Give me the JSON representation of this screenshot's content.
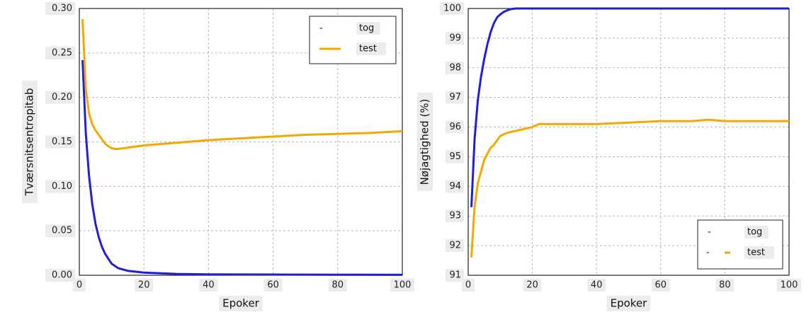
{
  "colors": {
    "train": "#1f1fd6",
    "test": "#f5a800",
    "grid": "#b8b8b8",
    "frame": "#222222"
  },
  "chart_data": [
    {
      "type": "line",
      "xlabel": "Epoker",
      "ylabel": "Tværsnitsentropitab",
      "xlim": [
        0,
        100
      ],
      "ylim": [
        0,
        0.3
      ],
      "xticks": [
        "0",
        "20",
        "40",
        "60",
        "80",
        "100"
      ],
      "yticks": [
        "0.00",
        "0.05",
        "0.10",
        "0.15",
        "0.20",
        "0.25",
        "0.30"
      ],
      "grid": true,
      "legend_position": "top-right",
      "series": [
        {
          "name": "tog",
          "legend_marker": "-",
          "x": [
            1,
            2,
            3,
            4,
            5,
            6,
            7,
            8,
            10,
            12,
            15,
            20,
            30,
            40,
            60,
            80,
            100
          ],
          "y": [
            0.242,
            0.16,
            0.112,
            0.08,
            0.058,
            0.043,
            0.032,
            0.024,
            0.013,
            0.008,
            0.005,
            0.003,
            0.0015,
            0.001,
            0.0008,
            0.0006,
            0.0005
          ]
        },
        {
          "name": "test",
          "legend_marker": "line",
          "x": [
            1,
            2,
            3,
            4,
            5,
            6,
            7,
            8,
            9,
            10,
            11,
            12,
            14,
            16,
            20,
            30,
            40,
            50,
            60,
            70,
            80,
            90,
            100
          ],
          "y": [
            0.288,
            0.21,
            0.182,
            0.17,
            0.163,
            0.158,
            0.153,
            0.148,
            0.145,
            0.143,
            0.142,
            0.142,
            0.143,
            0.144,
            0.146,
            0.149,
            0.152,
            0.154,
            0.156,
            0.158,
            0.159,
            0.16,
            0.162
          ]
        }
      ]
    },
    {
      "type": "line",
      "xlabel": "Epoker",
      "ylabel": "Nøjagtighed (%)",
      "xlim": [
        0,
        100
      ],
      "ylim": [
        91,
        100
      ],
      "xticks": [
        "0",
        "20",
        "40",
        "60",
        "80",
        "100"
      ],
      "yticks": [
        "91",
        "92",
        "93",
        "94",
        "95",
        "96",
        "97",
        "98",
        "99",
        "100"
      ],
      "grid": true,
      "legend_position": "bottom-right",
      "series": [
        {
          "name": "tog",
          "legend_marker": "-",
          "x": [
            1,
            2,
            3,
            4,
            5,
            6,
            7,
            8,
            9,
            10,
            11,
            12,
            13,
            14,
            15,
            100
          ],
          "y": [
            93.3,
            95.6,
            96.9,
            97.7,
            98.3,
            98.8,
            99.2,
            99.5,
            99.7,
            99.8,
            99.88,
            99.93,
            99.97,
            99.99,
            100,
            100
          ]
        },
        {
          "name": "test",
          "legend_marker": "dash",
          "x": [
            1,
            2,
            3,
            4,
            5,
            6,
            7,
            8,
            9,
            10,
            12,
            14,
            16,
            18,
            20,
            22,
            25,
            30,
            40,
            50,
            60,
            70,
            75,
            80,
            90,
            100
          ],
          "y": [
            91.6,
            93.3,
            94.1,
            94.5,
            94.9,
            95.1,
            95.3,
            95.4,
            95.55,
            95.7,
            95.8,
            95.85,
            95.9,
            95.95,
            96.0,
            96.1,
            96.1,
            96.1,
            96.1,
            96.15,
            96.2,
            96.2,
            96.25,
            96.2,
            96.2,
            96.2
          ]
        }
      ]
    }
  ]
}
